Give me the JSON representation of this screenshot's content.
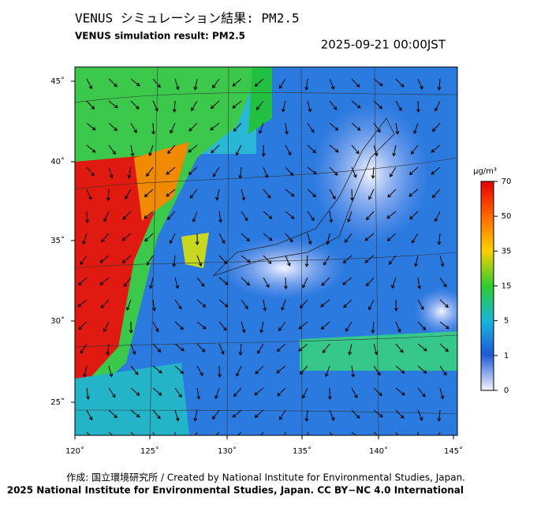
{
  "header": {
    "title": "VENUS シミュレーション結果: PM2.5",
    "subtitle": "VENUS simulation result: PM2.5",
    "timestamp": "2025-09-21 00:00JST"
  },
  "map": {
    "lon_labels": [
      "120˚",
      "125˚",
      "130˚",
      "135˚",
      "140˚",
      "145˚"
    ],
    "lat_labels": [
      "45˚",
      "40˚",
      "35˚",
      "30˚",
      "25˚"
    ]
  },
  "colorbar": {
    "unit": "μg/m³",
    "ticks": [
      70,
      50,
      35,
      15,
      5,
      1,
      0
    ]
  },
  "footer": {
    "credit": "作成: 国立環境研究所 / Created by National Institute for Environmental Studies, Japan.",
    "copyright": "2025 National Institute for Environmental Studies, Japan. CC BY−NC 4.0 International"
  }
}
